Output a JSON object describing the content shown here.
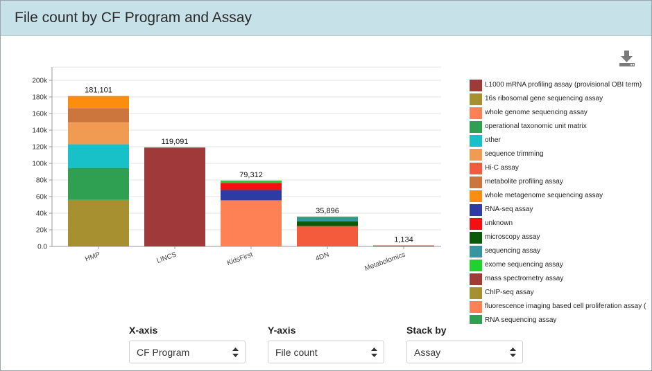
{
  "header": {
    "title": "File count by CF Program and Assay"
  },
  "toolbar": {
    "download_icon": "download-icon"
  },
  "chart_data": {
    "type": "bar",
    "stacked": true,
    "title": "",
    "xlabel": "",
    "ylabel": "",
    "ylim": [
      0,
      200000
    ],
    "yticks": [
      0,
      20000,
      40000,
      60000,
      80000,
      100000,
      120000,
      140000,
      160000,
      180000,
      200000
    ],
    "ytick_labels": [
      "0.0",
      "20k",
      "40k",
      "60k",
      "80k",
      "100k",
      "120k",
      "140k",
      "160k",
      "180k",
      "200k"
    ],
    "grid": true,
    "legend_position": "right",
    "categories": [
      "HMP",
      "LINCS",
      "KidsFirst",
      "4DN",
      "Metabolomics"
    ],
    "totals": [
      181101,
      119091,
      79312,
      35896,
      1134
    ],
    "total_labels": [
      "181,101",
      "119,091",
      "79,312",
      "35,896",
      "1,134"
    ],
    "series": [
      {
        "name": "L1000 mRNA profiling assay (provisional OBI term)",
        "color": "#a0393a",
        "values": [
          0,
          119091,
          0,
          0,
          0
        ]
      },
      {
        "name": "16s ribosomal gene sequencing assay",
        "color": "#a6902f",
        "values": [
          56000,
          0,
          0,
          0,
          0
        ]
      },
      {
        "name": "whole genome sequencing assay",
        "color": "#fd8155",
        "values": [
          0,
          0,
          55500,
          0,
          0
        ]
      },
      {
        "name": "operational taxonomic unit matrix",
        "color": "#2f9f52",
        "values": [
          38500,
          0,
          0,
          0,
          0
        ]
      },
      {
        "name": "other",
        "color": "#18c1c8",
        "values": [
          28500,
          0,
          0,
          0,
          0
        ]
      },
      {
        "name": "sequence trimming",
        "color": "#f09b51",
        "values": [
          26500,
          0,
          0,
          0,
          0
        ]
      },
      {
        "name": "Hi-C assay",
        "color": "#f45a3c",
        "values": [
          0,
          0,
          0,
          24500,
          0
        ]
      },
      {
        "name": "metabolite profiling assay",
        "color": "#cc763e",
        "values": [
          17000,
          0,
          0,
          0,
          0
        ]
      },
      {
        "name": "whole metagenome sequencing assay",
        "color": "#fd8d0c",
        "values": [
          14601,
          0,
          0,
          0,
          0
        ]
      },
      {
        "name": "RNA-seq assay",
        "color": "#2e3ba3",
        "values": [
          0,
          0,
          12500,
          0,
          0
        ]
      },
      {
        "name": "unknown",
        "color": "#f41011",
        "values": [
          0,
          0,
          8500,
          0,
          0
        ]
      },
      {
        "name": "microscopy assay",
        "color": "#0a5a0a",
        "values": [
          0,
          0,
          0,
          5500,
          0
        ]
      },
      {
        "name": "sequencing assay",
        "color": "#3596a1",
        "values": [
          0,
          0,
          0,
          4500,
          0
        ]
      },
      {
        "name": "exome sequencing assay",
        "color": "#21d12e",
        "values": [
          0,
          0,
          2812,
          0,
          0
        ]
      },
      {
        "name": "mass spectrometry assay",
        "color": "#a23a3a",
        "values": [
          0,
          0,
          0,
          0,
          1134
        ]
      },
      {
        "name": "ChIP-seq assay",
        "color": "#a6902f",
        "values": [
          0,
          0,
          0,
          0,
          0
        ]
      },
      {
        "name": "fluorescence imaging based cell proliferation assay (",
        "color": "#fd8155",
        "values": [
          0,
          0,
          0,
          0,
          0
        ]
      },
      {
        "name": "RNA sequencing assay",
        "color": "#2f9f52",
        "values": [
          0,
          0,
          0,
          1396,
          0
        ]
      }
    ]
  },
  "controls": [
    {
      "key": "xaxis",
      "label": "X-axis",
      "value": "CF Program"
    },
    {
      "key": "yaxis",
      "label": "Y-axis",
      "value": "File count"
    },
    {
      "key": "stackby",
      "label": "Stack by",
      "value": "Assay"
    }
  ]
}
